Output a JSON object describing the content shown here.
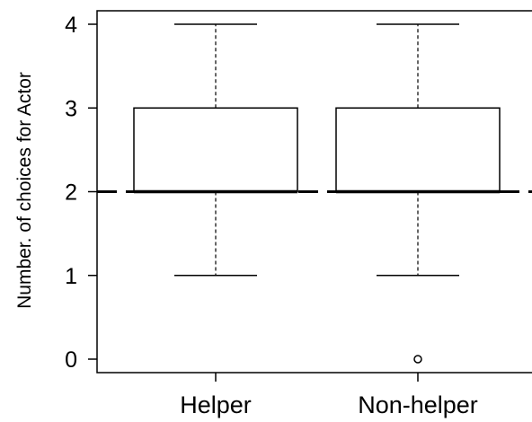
{
  "chart_data": {
    "type": "boxplot",
    "title": "",
    "xlabel": "",
    "ylabel": "Number. of choices for Actor",
    "ylim": [
      -0.15,
      4.15
    ],
    "yticks": [
      0,
      1,
      2,
      3,
      4
    ],
    "ytick_labels": [
      "0",
      "1",
      "2",
      "3",
      "4"
    ],
    "categories": [
      "Helper",
      "Non-helper"
    ],
    "boxes": [
      {
        "category": "Helper",
        "whisker_low": 1,
        "q1": 2,
        "median": 2,
        "q3": 3,
        "whisker_high": 4,
        "outliers": []
      },
      {
        "category": "Non-helper",
        "whisker_low": 1,
        "q1": 2,
        "median": 2,
        "q3": 3,
        "whisker_high": 4,
        "outliers": [
          0
        ]
      }
    ],
    "reference_line": {
      "y": 2,
      "style": "dashed"
    },
    "grid": false,
    "legend": "none",
    "colors": {
      "stroke": "#000000",
      "fill": "#ffffff"
    }
  }
}
